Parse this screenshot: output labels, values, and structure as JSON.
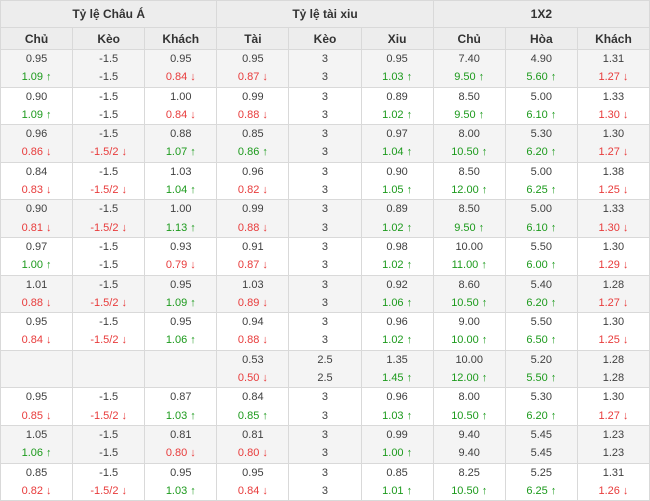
{
  "colors": {
    "up_green": "#1c9a1c",
    "down_red": "#e83b3b",
    "text": "#404040",
    "header_bg": "#ededed",
    "row_alt_bg": "#f4f4f4",
    "border": "#d9d9d9"
  },
  "icons": {
    "up_arrow": "↑",
    "down_arrow": "↓"
  },
  "table": {
    "sections": [
      {
        "label": "Tỷ lệ Châu Á",
        "cols": [
          "Chủ",
          "Kèo",
          "Khách"
        ]
      },
      {
        "label": "Tỷ lệ tài xiu",
        "cols": [
          "Tài",
          "Kèo",
          "Xiu"
        ]
      },
      {
        "label": "1X2",
        "cols": [
          "Chủ",
          "Hòa",
          "Khách"
        ]
      }
    ],
    "rows": [
      {
        "top": [
          "0.95",
          "-1.5",
          "0.95",
          "0.95",
          "3",
          "0.95",
          "7.40",
          "4.90",
          "1.31"
        ],
        "bottom": [
          {
            "v": "1.09",
            "c": "up"
          },
          {
            "v": "-1.5",
            "c": "flat"
          },
          {
            "v": "0.84",
            "c": "down"
          },
          {
            "v": "0.87",
            "c": "down"
          },
          {
            "v": "3",
            "c": "flat"
          },
          {
            "v": "1.03",
            "c": "up"
          },
          {
            "v": "9.50",
            "c": "up"
          },
          {
            "v": "5.60",
            "c": "up"
          },
          {
            "v": "1.27",
            "c": "down"
          }
        ]
      },
      {
        "top": [
          "0.90",
          "-1.5",
          "1.00",
          "0.99",
          "3",
          "0.89",
          "8.50",
          "5.00",
          "1.33"
        ],
        "bottom": [
          {
            "v": "1.09",
            "c": "up"
          },
          {
            "v": "-1.5",
            "c": "flat"
          },
          {
            "v": "0.84",
            "c": "down"
          },
          {
            "v": "0.88",
            "c": "down"
          },
          {
            "v": "3",
            "c": "flat"
          },
          {
            "v": "1.02",
            "c": "up"
          },
          {
            "v": "9.50",
            "c": "up"
          },
          {
            "v": "6.10",
            "c": "up"
          },
          {
            "v": "1.30",
            "c": "down"
          }
        ]
      },
      {
        "top": [
          "0.96",
          "-1.5",
          "0.88",
          "0.85",
          "3",
          "0.97",
          "8.00",
          "5.30",
          "1.30"
        ],
        "bottom": [
          {
            "v": "0.86",
            "c": "down"
          },
          {
            "v": "-1.5/2",
            "c": "down"
          },
          {
            "v": "1.07",
            "c": "up"
          },
          {
            "v": "0.86",
            "c": "up"
          },
          {
            "v": "3",
            "c": "flat"
          },
          {
            "v": "1.04",
            "c": "up"
          },
          {
            "v": "10.50",
            "c": "up"
          },
          {
            "v": "6.20",
            "c": "up"
          },
          {
            "v": "1.27",
            "c": "down"
          }
        ]
      },
      {
        "top": [
          "0.84",
          "-1.5",
          "1.03",
          "0.96",
          "3",
          "0.90",
          "8.50",
          "5.00",
          "1.38"
        ],
        "bottom": [
          {
            "v": "0.83",
            "c": "down"
          },
          {
            "v": "-1.5/2",
            "c": "down"
          },
          {
            "v": "1.04",
            "c": "up"
          },
          {
            "v": "0.82",
            "c": "down"
          },
          {
            "v": "3",
            "c": "flat"
          },
          {
            "v": "1.05",
            "c": "up"
          },
          {
            "v": "12.00",
            "c": "up"
          },
          {
            "v": "6.25",
            "c": "up"
          },
          {
            "v": "1.25",
            "c": "down"
          }
        ]
      },
      {
        "top": [
          "0.90",
          "-1.5",
          "1.00",
          "0.99",
          "3",
          "0.89",
          "8.50",
          "5.00",
          "1.33"
        ],
        "bottom": [
          {
            "v": "0.81",
            "c": "down"
          },
          {
            "v": "-1.5/2",
            "c": "down"
          },
          {
            "v": "1.13",
            "c": "up"
          },
          {
            "v": "0.88",
            "c": "down"
          },
          {
            "v": "3",
            "c": "flat"
          },
          {
            "v": "1.02",
            "c": "up"
          },
          {
            "v": "9.50",
            "c": "up"
          },
          {
            "v": "6.10",
            "c": "up"
          },
          {
            "v": "1.30",
            "c": "down"
          }
        ]
      },
      {
        "top": [
          "0.97",
          "-1.5",
          "0.93",
          "0.91",
          "3",
          "0.98",
          "10.00",
          "5.50",
          "1.30"
        ],
        "bottom": [
          {
            "v": "1.00",
            "c": "up"
          },
          {
            "v": "-1.5",
            "c": "flat"
          },
          {
            "v": "0.79",
            "c": "down"
          },
          {
            "v": "0.87",
            "c": "down"
          },
          {
            "v": "3",
            "c": "flat"
          },
          {
            "v": "1.02",
            "c": "up"
          },
          {
            "v": "11.00",
            "c": "up"
          },
          {
            "v": "6.00",
            "c": "up"
          },
          {
            "v": "1.29",
            "c": "down"
          }
        ]
      },
      {
        "top": [
          "1.01",
          "-1.5",
          "0.95",
          "1.03",
          "3",
          "0.92",
          "8.60",
          "5.40",
          "1.28"
        ],
        "bottom": [
          {
            "v": "0.88",
            "c": "down"
          },
          {
            "v": "-1.5/2",
            "c": "down"
          },
          {
            "v": "1.09",
            "c": "up"
          },
          {
            "v": "0.89",
            "c": "down"
          },
          {
            "v": "3",
            "c": "flat"
          },
          {
            "v": "1.06",
            "c": "up"
          },
          {
            "v": "10.50",
            "c": "up"
          },
          {
            "v": "6.20",
            "c": "up"
          },
          {
            "v": "1.27",
            "c": "down"
          }
        ]
      },
      {
        "top": [
          "0.95",
          "-1.5",
          "0.95",
          "0.94",
          "3",
          "0.96",
          "9.00",
          "5.50",
          "1.30"
        ],
        "bottom": [
          {
            "v": "0.84",
            "c": "down"
          },
          {
            "v": "-1.5/2",
            "c": "down"
          },
          {
            "v": "1.06",
            "c": "up"
          },
          {
            "v": "0.88",
            "c": "down"
          },
          {
            "v": "3",
            "c": "flat"
          },
          {
            "v": "1.02",
            "c": "up"
          },
          {
            "v": "10.00",
            "c": "up"
          },
          {
            "v": "6.50",
            "c": "up"
          },
          {
            "v": "1.25",
            "c": "down"
          }
        ]
      },
      {
        "top": [
          "",
          "",
          "",
          "0.53",
          "2.5",
          "1.35",
          "10.00",
          "5.20",
          "1.28"
        ],
        "bottom": [
          {
            "v": "",
            "c": "flat"
          },
          {
            "v": "",
            "c": "flat"
          },
          {
            "v": "",
            "c": "flat"
          },
          {
            "v": "0.50",
            "c": "down"
          },
          {
            "v": "2.5",
            "c": "flat"
          },
          {
            "v": "1.45",
            "c": "up"
          },
          {
            "v": "12.00",
            "c": "up"
          },
          {
            "v": "5.50",
            "c": "up"
          },
          {
            "v": "1.28",
            "c": "flat"
          }
        ]
      },
      {
        "top": [
          "0.95",
          "-1.5",
          "0.87",
          "0.84",
          "3",
          "0.96",
          "8.00",
          "5.30",
          "1.30"
        ],
        "bottom": [
          {
            "v": "0.85",
            "c": "down"
          },
          {
            "v": "-1.5/2",
            "c": "down"
          },
          {
            "v": "1.03",
            "c": "up"
          },
          {
            "v": "0.85",
            "c": "up"
          },
          {
            "v": "3",
            "c": "flat"
          },
          {
            "v": "1.03",
            "c": "up"
          },
          {
            "v": "10.50",
            "c": "up"
          },
          {
            "v": "6.20",
            "c": "up"
          },
          {
            "v": "1.27",
            "c": "down"
          }
        ]
      },
      {
        "top": [
          "1.05",
          "-1.5",
          "0.81",
          "0.81",
          "3",
          "0.99",
          "9.40",
          "5.45",
          "1.23"
        ],
        "bottom": [
          {
            "v": "1.06",
            "c": "up"
          },
          {
            "v": "-1.5",
            "c": "flat"
          },
          {
            "v": "0.80",
            "c": "down"
          },
          {
            "v": "0.80",
            "c": "down"
          },
          {
            "v": "3",
            "c": "flat"
          },
          {
            "v": "1.00",
            "c": "up"
          },
          {
            "v": "9.40",
            "c": "flat"
          },
          {
            "v": "5.45",
            "c": "flat"
          },
          {
            "v": "1.23",
            "c": "flat"
          }
        ]
      },
      {
        "top": [
          "0.85",
          "-1.5",
          "0.95",
          "0.95",
          "3",
          "0.85",
          "8.25",
          "5.25",
          "1.31"
        ],
        "bottom": [
          {
            "v": "0.82",
            "c": "down"
          },
          {
            "v": "-1.5/2",
            "c": "down"
          },
          {
            "v": "1.03",
            "c": "up"
          },
          {
            "v": "0.84",
            "c": "down"
          },
          {
            "v": "3",
            "c": "flat"
          },
          {
            "v": "1.01",
            "c": "up"
          },
          {
            "v": "10.50",
            "c": "up"
          },
          {
            "v": "6.25",
            "c": "up"
          },
          {
            "v": "1.26",
            "c": "down"
          }
        ]
      }
    ]
  }
}
